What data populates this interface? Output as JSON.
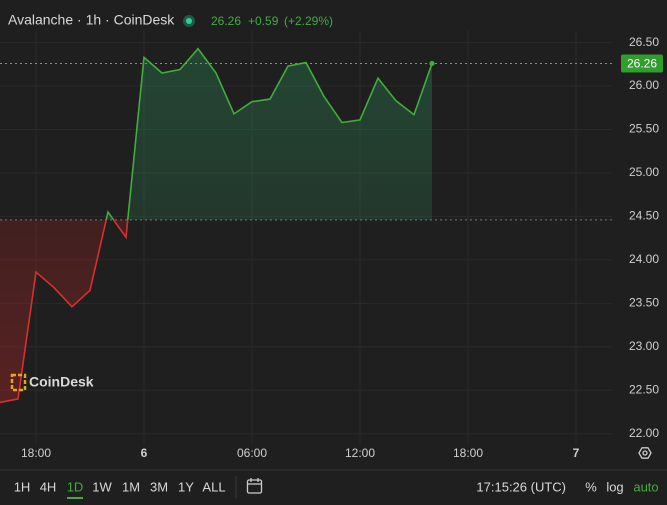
{
  "header": {
    "title": "Avalanche · 1h · CoinDesk",
    "price": "26.26",
    "change": "+0.59",
    "change_pct": "(+2.29%)"
  },
  "chart_data": {
    "type": "baseline",
    "x": [
      0,
      1,
      2,
      3,
      4,
      5,
      6,
      7,
      8,
      9,
      10,
      11,
      12,
      13,
      14,
      15,
      16,
      17,
      18,
      19,
      20,
      21,
      22,
      23,
      24
    ],
    "series": [
      {
        "values": [
          22.36,
          22.4,
          23.86,
          23.68,
          23.46,
          23.65,
          24.55,
          24.26,
          26.33,
          26.15,
          26.19,
          26.43,
          26.15,
          25.68,
          25.82,
          25.85,
          26.23,
          26.27,
          25.88,
          25.58,
          25.61,
          26.09,
          25.83,
          25.67,
          26.26
        ]
      }
    ],
    "baseline": 24.46,
    "color_above": "#3fae3a",
    "color_below": "#d8302f",
    "xlim": [
      0,
      34
    ],
    "ylim": [
      21.87,
      26.99
    ],
    "xticks": [
      {
        "value": 2,
        "label": "18:00"
      },
      {
        "value": 8,
        "label": "6"
      },
      {
        "value": 14,
        "label": "06:00"
      },
      {
        "value": 20,
        "label": "12:00"
      },
      {
        "value": 26,
        "label": "18:00"
      },
      {
        "value": 32,
        "label": "7"
      }
    ],
    "yticks": [
      {
        "value": 22,
        "label": "22.00"
      },
      {
        "value": 22.5,
        "label": "22.50"
      },
      {
        "value": 23,
        "label": "23.00"
      },
      {
        "value": 23.5,
        "label": "23.50"
      },
      {
        "value": 24,
        "label": "24.00"
      },
      {
        "value": 24.5,
        "label": "24.50"
      },
      {
        "value": 25,
        "label": "25.00"
      },
      {
        "value": 25.5,
        "label": "25.50"
      },
      {
        "value": 26,
        "label": "26.00"
      },
      {
        "value": 26.5,
        "label": "26.50"
      }
    ],
    "grid": true,
    "watermark": "CoinDesk"
  },
  "toolbar": {
    "ranges": [
      "1H",
      "4H",
      "1D",
      "1W",
      "1M",
      "3M",
      "1Y",
      "ALL"
    ],
    "selected": "1D",
    "time": "17:15:26 (UTC)",
    "percent": "%",
    "log": "log",
    "auto": "auto"
  }
}
